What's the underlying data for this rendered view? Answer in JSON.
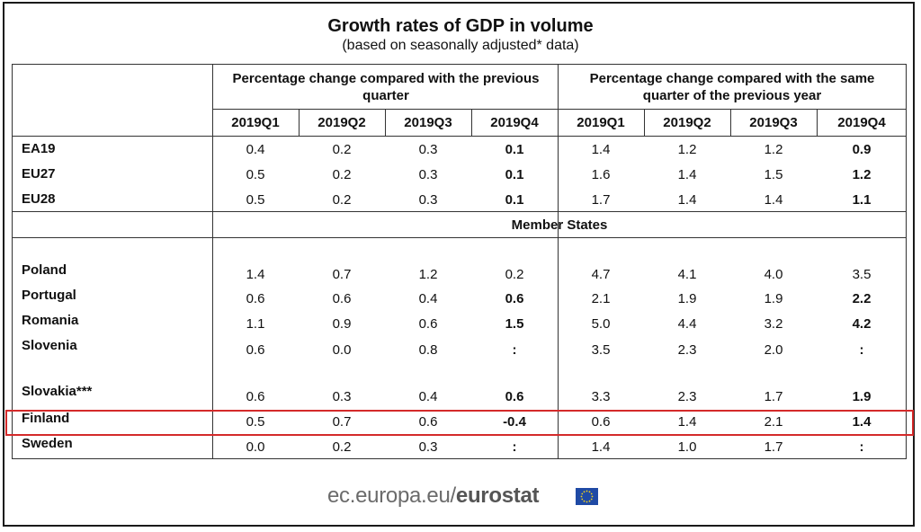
{
  "title": "Growth rates of GDP in volume",
  "subtitle": "(based on seasonally adjusted* data)",
  "group_headers": {
    "previous_quarter": "Percentage change compared with the previous quarter",
    "previous_year": "Percentage change compared with the same quarter of the previous year"
  },
  "quarters": [
    "2019Q1",
    "2019Q2",
    "2019Q3",
    "2019Q4",
    "2019Q1",
    "2019Q2",
    "2019Q3",
    "2019Q4"
  ],
  "section_member_states": "Member States",
  "aggregates": [
    {
      "label": "EA19",
      "values": [
        "0.4",
        "0.2",
        "0.3",
        "0.1",
        "1.4",
        "1.2",
        "1.2",
        "0.9"
      ],
      "bold": [
        false,
        false,
        false,
        true,
        false,
        false,
        false,
        true
      ]
    },
    {
      "label": "EU27",
      "values": [
        "0.5",
        "0.2",
        "0.3",
        "0.1",
        "1.6",
        "1.4",
        "1.5",
        "1.2"
      ],
      "bold": [
        false,
        false,
        false,
        true,
        false,
        false,
        false,
        true
      ]
    },
    {
      "label": "EU28",
      "values": [
        "0.5",
        "0.2",
        "0.3",
        "0.1",
        "1.7",
        "1.4",
        "1.4",
        "1.1"
      ],
      "bold": [
        false,
        false,
        false,
        true,
        false,
        false,
        false,
        true
      ]
    }
  ],
  "members": [
    {
      "label": "Poland",
      "values": [
        "1.4",
        "0.7",
        "1.2",
        "0.2",
        "4.7",
        "4.1",
        "4.0",
        "3.5"
      ],
      "bold": [
        false,
        false,
        false,
        false,
        false,
        false,
        false,
        false
      ]
    },
    {
      "label": "Portugal",
      "values": [
        "0.6",
        "0.6",
        "0.4",
        "0.6",
        "2.1",
        "1.9",
        "1.9",
        "2.2"
      ],
      "bold": [
        false,
        false,
        false,
        true,
        false,
        false,
        false,
        true
      ]
    },
    {
      "label": "Romania",
      "values": [
        "1.1",
        "0.9",
        "0.6",
        "1.5",
        "5.0",
        "4.4",
        "3.2",
        "4.2"
      ],
      "bold": [
        false,
        false,
        false,
        true,
        false,
        false,
        false,
        true
      ]
    },
    {
      "label": "Slovenia",
      "values": [
        "0.6",
        "0.0",
        "0.8",
        ":",
        "3.5",
        "2.3",
        "2.0",
        ":"
      ],
      "bold": [
        false,
        false,
        false,
        true,
        false,
        false,
        false,
        true
      ]
    },
    {
      "label": "Slovakia***",
      "values": [
        "0.6",
        "0.3",
        "0.4",
        "0.6",
        "3.3",
        "2.3",
        "1.7",
        "1.9"
      ],
      "bold": [
        false,
        false,
        false,
        true,
        false,
        false,
        false,
        true
      ]
    },
    {
      "label": "Finland",
      "values": [
        "0.5",
        "0.7",
        "0.6",
        "-0.4",
        "0.6",
        "1.4",
        "2.1",
        "1.4"
      ],
      "bold": [
        false,
        false,
        false,
        true,
        false,
        false,
        false,
        true
      ]
    },
    {
      "label": "Sweden",
      "values": [
        "0.0",
        "0.2",
        "0.3",
        ":",
        "1.4",
        "1.0",
        "1.7",
        ":"
      ],
      "bold": [
        false,
        false,
        false,
        true,
        false,
        false,
        false,
        true
      ]
    }
  ],
  "highlighted_row": "Finland",
  "colors": {
    "highlight": "#d42a2a",
    "flag": "#1f4aa5",
    "star": "#f5d31a"
  },
  "footer": {
    "prefix": "ec.europa.eu/",
    "brand": "eurostat"
  }
}
